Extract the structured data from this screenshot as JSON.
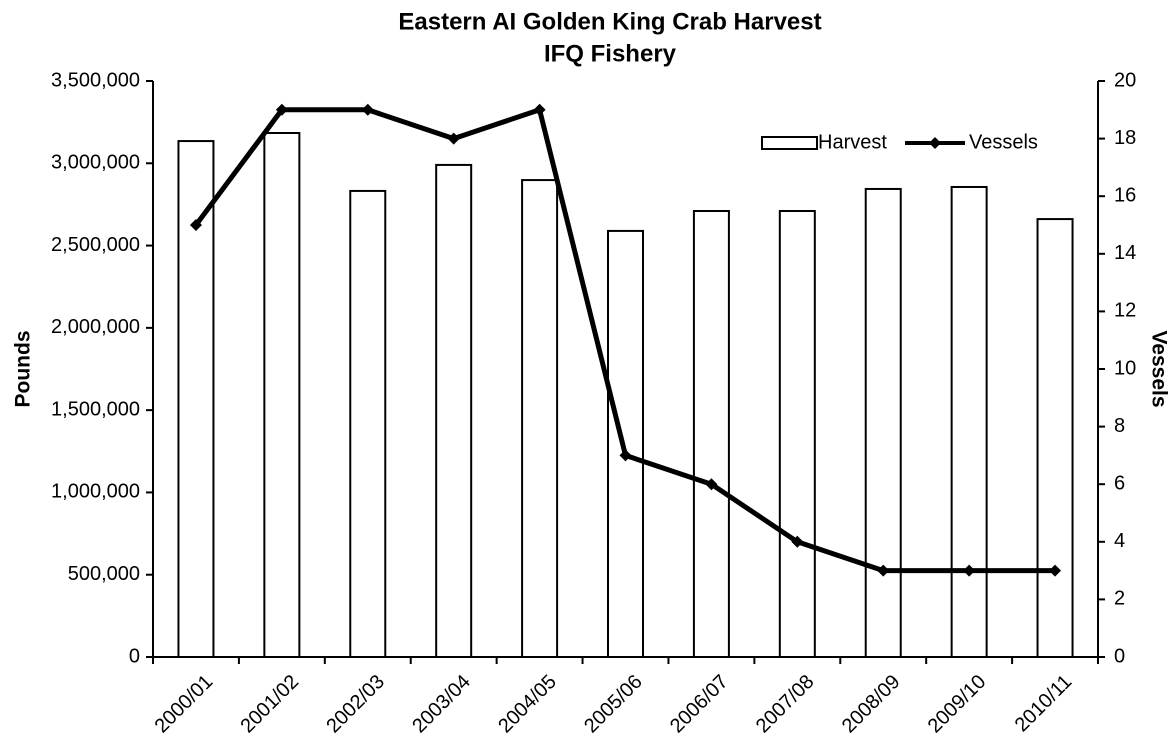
{
  "chart_data": {
    "type": "bar",
    "title": "Eastern AI Golden King Crab Harvest",
    "subtitle": "IFQ Fishery",
    "y_label": "Pounds",
    "y2_label": "Vessels",
    "categories": [
      "2000/01",
      "2001/02",
      "2002/03",
      "2003/04",
      "2004/05",
      "2005/06",
      "2006/07",
      "2007/08",
      "2008/09",
      "2009/10",
      "2010/11"
    ],
    "series": [
      {
        "name": "Harvest",
        "type": "bar",
        "color": "#ffffff",
        "values": [
          3135000,
          3184000,
          2832000,
          2990000,
          2898000,
          2589000,
          2710000,
          2710000,
          2844000,
          2856000,
          2661000
        ]
      },
      {
        "name": "Vessels",
        "type": "line",
        "axis": "y2",
        "color": "#000000",
        "values": [
          15,
          19,
          19,
          18,
          19,
          7,
          6,
          4,
          3,
          3,
          3
        ]
      }
    ],
    "ylim": [
      0,
      3500000
    ],
    "yticks": [
      0,
      {
        "value": 500000,
        "label": "500,000"
      },
      {
        "value": 1000000,
        "label": "1,000,000"
      },
      {
        "value": 1500000,
        "label": "1,500,000"
      },
      {
        "value": 2000000,
        "label": "2,000,000"
      },
      {
        "value": 2500000,
        "label": "2,500,000"
      },
      {
        "value": 3000000,
        "label": "3,000,000"
      },
      {
        "value": 3500000,
        "label": "3,500,000"
      }
    ],
    "y2lim": [
      0,
      20
    ],
    "y2ticks": [
      0,
      2,
      4,
      6,
      8,
      10,
      12,
      14,
      16,
      18,
      20
    ],
    "legend": "upper right",
    "grid": false
  }
}
